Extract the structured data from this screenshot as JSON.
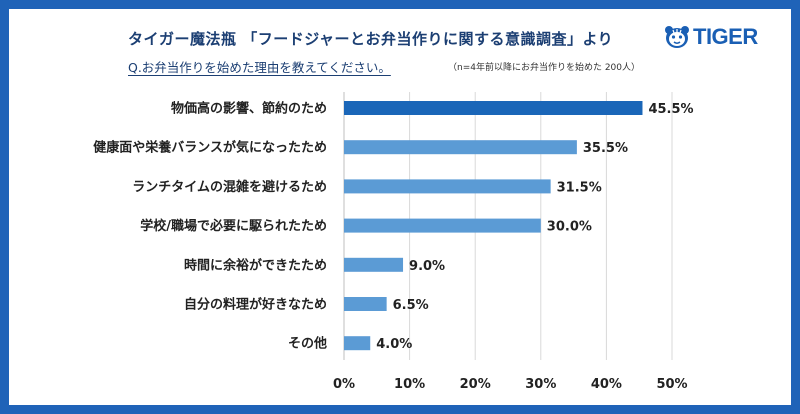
{
  "header": {
    "title": "タイガー魔法瓶 「フードジャーとお弁当作りに関する意識調査」より",
    "question": "Q.お弁当作りを始めた理由を教えてください。",
    "note": "（n=4年前以降にお弁当作りを始めた 200人）"
  },
  "brand": {
    "name": "TIGER",
    "icon": "tiger-face-icon",
    "color": "#1a5fb4"
  },
  "colors": {
    "frame": "#1f63b8",
    "highlight_bar": "#1a66b8",
    "bar": "#5b9bd5",
    "grid": "#d9d9d9"
  },
  "chart_data": {
    "type": "bar",
    "orientation": "horizontal",
    "title": "Q.お弁当作りを始めた理由を教えてください。",
    "categories": [
      "物価高の影響、節約のため",
      "健康面や栄養バランスが気になったため",
      "ランチタイムの混雑を避けるため",
      "学校/職場で必要に駆られたため",
      "時間に余裕ができたため",
      "自分の料理が好きなため",
      "その他"
    ],
    "values": [
      45.5,
      35.5,
      31.5,
      30.0,
      9.0,
      6.5,
      4.0
    ],
    "value_labels": [
      "45.5%",
      "35.5%",
      "31.5%",
      "30.0%",
      "9.0%",
      "6.5%",
      "4.0%"
    ],
    "xlim": [
      0,
      50
    ],
    "xticks": [
      0,
      10,
      20,
      30,
      40,
      50
    ],
    "xtick_labels": [
      "0%",
      "10%",
      "20%",
      "30%",
      "40%",
      "50%"
    ],
    "grid": true,
    "highlight_index": 0
  }
}
